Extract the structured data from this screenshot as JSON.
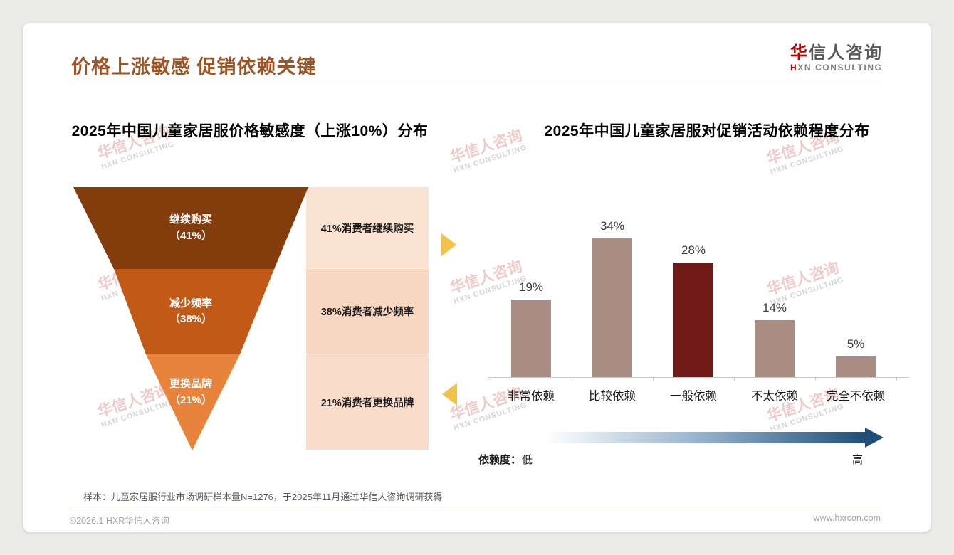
{
  "page": {
    "background": "#EBEBE9",
    "accent": "#9D5526",
    "title": "价格上涨敏感 促销依赖关键",
    "logo": {
      "zh_first": "华",
      "zh_rest": "信人咨询",
      "en_first": "H",
      "en_rest": "XN CONSULTING",
      "red": "#C00000"
    },
    "watermark": {
      "zh": "华信人咨询",
      "en": "HXN CONSULTING"
    },
    "footnote": "样本：儿童家居服行业市场调研样本量N=1276，于2025年11月通过华信人咨询调研获得",
    "footer": {
      "left": "©2026.1 HXR华信人咨询",
      "right": "www.hxrcon.com"
    }
  },
  "chart_data": [
    {
      "type": "funnel",
      "title": "2025年中国儿童家居服价格敏感度（上涨10%）分布",
      "levels": [
        {
          "label": "继续购买",
          "pct_label": "（41%）",
          "value": 41,
          "desc": "41%消费者继续购买",
          "color": "#833D0D",
          "panel_color": "#FBE3D3"
        },
        {
          "label": "减少频率",
          "pct_label": "（38%）",
          "value": 38,
          "desc": "38%消费者减少频率",
          "color": "#C25A17",
          "panel_color": "#F8D7C2"
        },
        {
          "label": "更换品牌",
          "pct_label": "（21%）",
          "value": 21,
          "desc": "21%消费者更换品牌",
          "color": "#E8833C",
          "panel_color": "#F9DCCA"
        }
      ],
      "connector_color": "#F3C24B"
    },
    {
      "type": "bar",
      "title": "2025年中国儿童家居服对促销活动依赖程度分布",
      "categories": [
        "非常依赖",
        "比较依赖",
        "一般依赖",
        "不太依赖",
        "完全不依赖"
      ],
      "values": [
        19,
        34,
        28,
        14,
        5
      ],
      "value_labels": [
        "19%",
        "34%",
        "28%",
        "14%",
        "5%"
      ],
      "bar_color": "#AA8D82",
      "highlight_index": 2,
      "highlight_color": "#6F1A16",
      "ylim": [
        0,
        40
      ],
      "grid": false,
      "legend": null,
      "dependency_scale": {
        "label": "依赖度：",
        "low": "低",
        "high": "高",
        "gradient": [
          "#FFFFFF",
          "#8FAECB",
          "#1F4E79"
        ]
      }
    }
  ]
}
